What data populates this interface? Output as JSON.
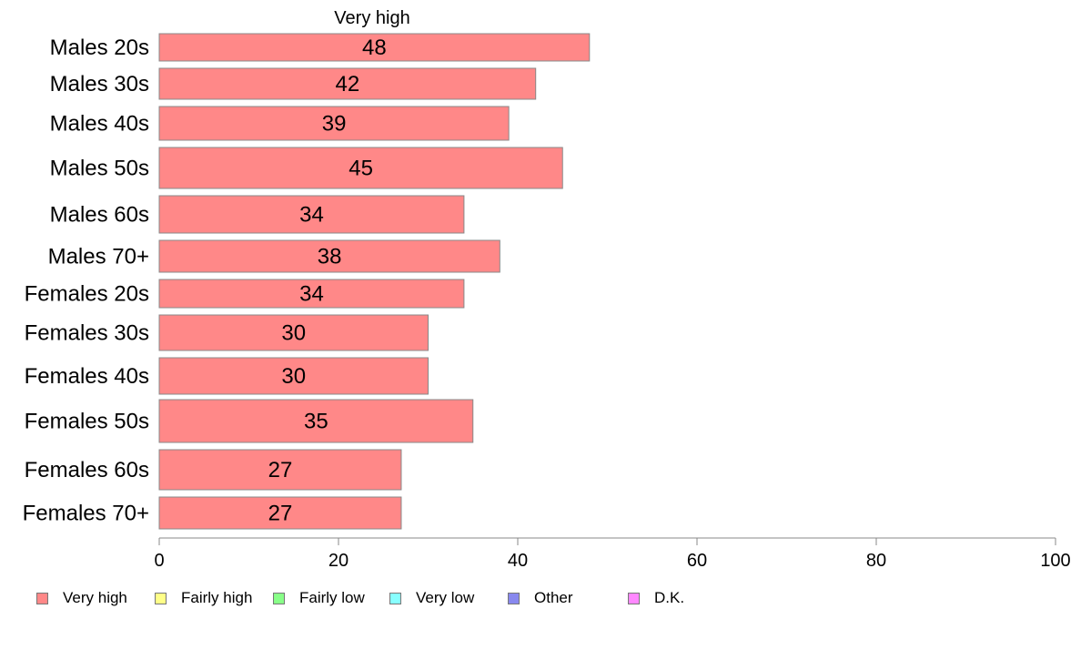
{
  "chart_data": {
    "type": "bar",
    "orientation": "horizontal",
    "panel_title": "Very high",
    "categories": [
      "Males 20s",
      "Males 30s",
      "Males 40s",
      "Males 50s",
      "Males 60s",
      "Males 70+",
      "Females 20s",
      "Females 30s",
      "Females 40s",
      "Females 50s",
      "Females 60s",
      "Females 70+"
    ],
    "series": [
      {
        "name": "Very high",
        "color": "#ff8888",
        "values": [
          48,
          42,
          39,
          45,
          34,
          38,
          34,
          30,
          30,
          35,
          27,
          27
        ]
      }
    ],
    "xlim": [
      0,
      100
    ],
    "xticks": [
      0,
      20,
      40,
      60,
      80,
      100
    ],
    "grid": false,
    "legend_position": "bottom-left",
    "legend": [
      {
        "label": "Very high",
        "color": "#ff8888"
      },
      {
        "label": "Fairly high",
        "color": "#ffff88"
      },
      {
        "label": "Fairly low",
        "color": "#88ff88"
      },
      {
        "label": "Very low",
        "color": "#88ffff"
      },
      {
        "label": "Other",
        "color": "#8888ee"
      },
      {
        "label": "D.K.",
        "color": "#ff88ff"
      }
    ]
  }
}
